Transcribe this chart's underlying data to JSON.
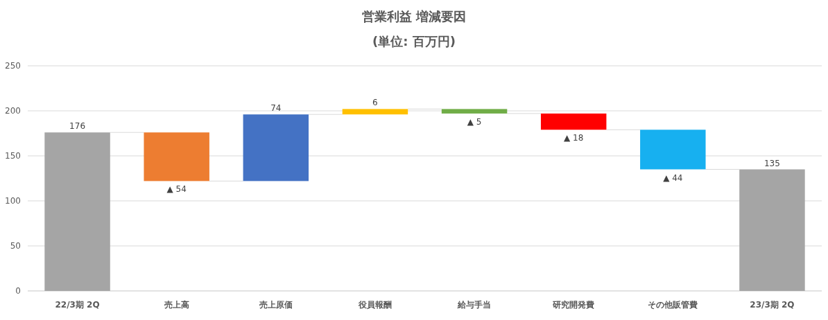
{
  "chart_data": {
    "type": "bar",
    "title": "営業利益 増減要因",
    "subtitle": "(単位: 百万円)",
    "categories": [
      "22/3期 2Q",
      "売上高",
      "売上原価",
      "役員報酬",
      "給与手当",
      "研究開発費",
      "その他販管費",
      "23/3期 2Q"
    ],
    "values": [
      176,
      -54,
      74,
      6,
      -5,
      -18,
      -44,
      135
    ],
    "base": [
      0,
      176,
      122,
      196,
      202,
      197,
      179,
      0
    ],
    "colors": [
      "#a5a5a5",
      "#ed7d31",
      "#4472c4",
      "#ffc000",
      "#70ad47",
      "#ff0000",
      "#17b0f0",
      "#a5a5a5"
    ],
    "value_labels": [
      "176",
      "▲ 54",
      "74",
      "6",
      "▲ 5",
      "▲ 18",
      "▲ 44",
      "135"
    ],
    "ylim": [
      0,
      250
    ],
    "yticks": [
      0,
      50,
      100,
      150,
      200,
      250
    ],
    "grid": "y"
  }
}
